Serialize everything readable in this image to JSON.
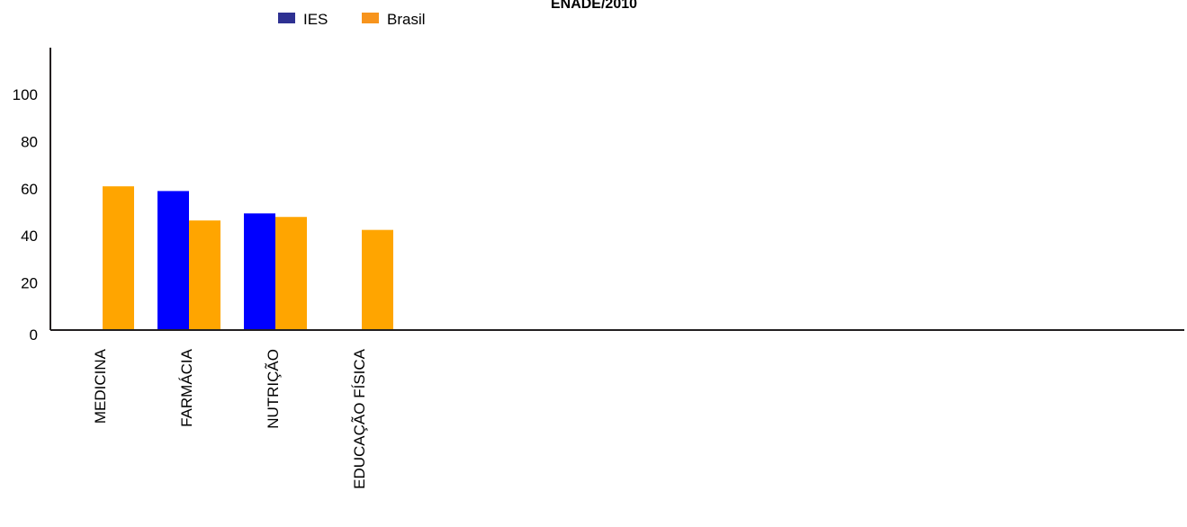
{
  "chart_data": {
    "type": "bar",
    "title": "ENADE/2010",
    "categories": [
      "MEDICINA",
      "FARMÁCIA",
      "NUTRIÇÃO",
      "EDUCAÇÃO FÍSICA"
    ],
    "series": [
      {
        "name": "IES",
        "color": "#0000ff",
        "legend_color": "#2e3192",
        "values": [
          null,
          59,
          49.5,
          null
        ]
      },
      {
        "name": "Brasil",
        "color": "#ffa500",
        "legend_color": "#f7941d",
        "values": [
          61,
          46.5,
          48,
          42.5
        ]
      }
    ],
    "ylim": [
      0,
      120
    ],
    "yticks": [
      0,
      20,
      40,
      60,
      80,
      100
    ],
    "xlabel": "",
    "ylabel": "",
    "legend_position": "top"
  }
}
